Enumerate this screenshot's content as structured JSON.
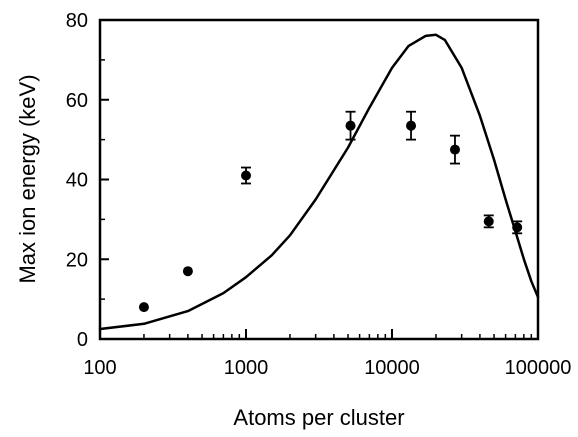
{
  "chart_data": {
    "type": "scatter",
    "title": "",
    "xlabel": "Atoms per cluster",
    "ylabel": "Max ion energy (keV)",
    "x_scale": "log",
    "xlim": [
      100,
      100000
    ],
    "ylim": [
      0,
      80
    ],
    "x_ticks": [
      100,
      1000,
      10000,
      100000
    ],
    "x_tick_labels": [
      "100",
      "1000",
      "10000",
      "100000"
    ],
    "y_ticks": [
      0,
      20,
      40,
      60,
      80
    ],
    "y_tick_labels": [
      "0",
      "20",
      "40",
      "60",
      "80"
    ],
    "grid": false,
    "legend": "none",
    "series": [
      {
        "type": "scatter",
        "color": "#000000",
        "points": [
          {
            "x": 200,
            "y": 8,
            "err": 0
          },
          {
            "x": 400,
            "y": 17,
            "err": 0
          },
          {
            "x": 1000,
            "y": 41,
            "err": 2
          },
          {
            "x": 5200,
            "y": 53.5,
            "err": 3.5
          },
          {
            "x": 13500,
            "y": 53.5,
            "err": 3.5
          },
          {
            "x": 27000,
            "y": 47.5,
            "err": 3.5
          },
          {
            "x": 46000,
            "y": 29.5,
            "err": 1.5
          },
          {
            "x": 72000,
            "y": 28,
            "err": 1.5
          }
        ]
      },
      {
        "type": "line",
        "color": "#000000",
        "points": [
          {
            "x": 100,
            "y": 2.5
          },
          {
            "x": 200,
            "y": 3.8
          },
          {
            "x": 400,
            "y": 7
          },
          {
            "x": 700,
            "y": 11.5
          },
          {
            "x": 1000,
            "y": 15.5
          },
          {
            "x": 1500,
            "y": 21
          },
          {
            "x": 2000,
            "y": 26
          },
          {
            "x": 3000,
            "y": 35
          },
          {
            "x": 5000,
            "y": 48
          },
          {
            "x": 7000,
            "y": 58
          },
          {
            "x": 10000,
            "y": 68
          },
          {
            "x": 13000,
            "y": 73.5
          },
          {
            "x": 17000,
            "y": 76
          },
          {
            "x": 20000,
            "y": 76.3
          },
          {
            "x": 23000,
            "y": 75
          },
          {
            "x": 30000,
            "y": 68
          },
          {
            "x": 40000,
            "y": 56
          },
          {
            "x": 50000,
            "y": 45
          },
          {
            "x": 60000,
            "y": 35
          },
          {
            "x": 70000,
            "y": 27
          },
          {
            "x": 80000,
            "y": 20
          },
          {
            "x": 90000,
            "y": 14.5
          },
          {
            "x": 100000,
            "y": 10.5
          }
        ]
      }
    ]
  }
}
